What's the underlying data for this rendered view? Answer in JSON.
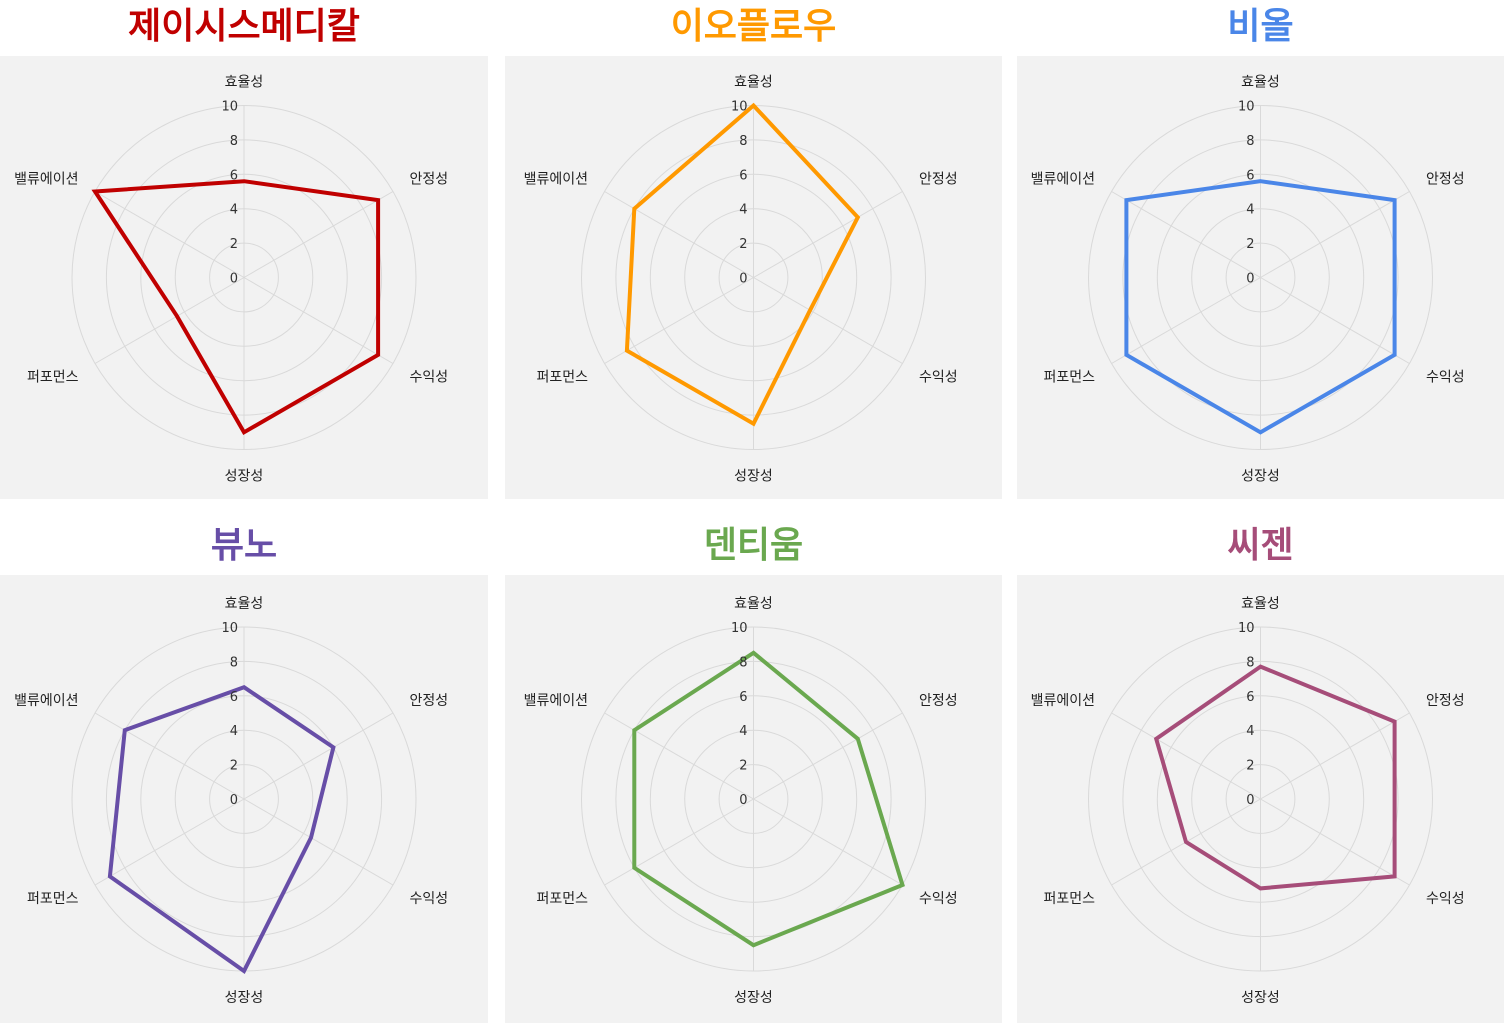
{
  "chart_data": [
    {
      "type": "radar",
      "title": "제이시스메디칼",
      "color": "#c00000",
      "axes": [
        "효율성",
        "안정성",
        "수익성",
        "성장성",
        "퍼포먼스",
        "밸류에이션"
      ],
      "values": [
        5.6,
        9,
        9,
        9,
        4.5,
        10
      ],
      "ticks": [
        "0",
        "2",
        "4",
        "6",
        "8",
        "10"
      ],
      "rmax": 10
    },
    {
      "type": "radar",
      "title": "이오플로우",
      "color": "#ff9900",
      "axes": [
        "효율성",
        "안정성",
        "수익성",
        "성장성",
        "퍼포먼스",
        "밸류에이션"
      ],
      "values": [
        10,
        7,
        3.8,
        8.5,
        8.5,
        8
      ],
      "ticks": [
        "0",
        "2",
        "4",
        "6",
        "8",
        "10"
      ],
      "rmax": 10
    },
    {
      "type": "radar",
      "title": "비올",
      "color": "#4a86e8",
      "axes": [
        "효율성",
        "안정성",
        "수익성",
        "성장성",
        "퍼포먼스",
        "밸류에이션"
      ],
      "values": [
        5.6,
        9,
        9,
        9,
        9,
        9
      ],
      "ticks": [
        "0",
        "2",
        "4",
        "6",
        "8",
        "10"
      ],
      "rmax": 10
    },
    {
      "type": "radar",
      "title": "뷰노",
      "color": "#674ea7",
      "axes": [
        "효율성",
        "안정성",
        "수익성",
        "성장성",
        "퍼포먼스",
        "밸류에이션"
      ],
      "values": [
        6.5,
        6,
        4.5,
        10,
        9,
        8
      ],
      "ticks": [
        "0",
        "2",
        "4",
        "6",
        "8",
        "10"
      ],
      "rmax": 10
    },
    {
      "type": "radar",
      "title": "덴티움",
      "color": "#6aa84f",
      "axes": [
        "효율성",
        "안정성",
        "수익성",
        "성장성",
        "퍼포먼스",
        "밸류에이션"
      ],
      "values": [
        8.5,
        7,
        10,
        8.5,
        8,
        8
      ],
      "ticks": [
        "0",
        "2",
        "4",
        "6",
        "8",
        "10"
      ],
      "rmax": 10
    },
    {
      "type": "radar",
      "title": "씨젠",
      "color": "#a64d79",
      "axes": [
        "효율성",
        "안정성",
        "수익성",
        "성장성",
        "퍼포먼스",
        "밸류에이션"
      ],
      "values": [
        7.7,
        9,
        9,
        5.2,
        5,
        7
      ],
      "ticks": [
        "0",
        "2",
        "4",
        "6",
        "8",
        "10"
      ],
      "rmax": 10
    }
  ]
}
